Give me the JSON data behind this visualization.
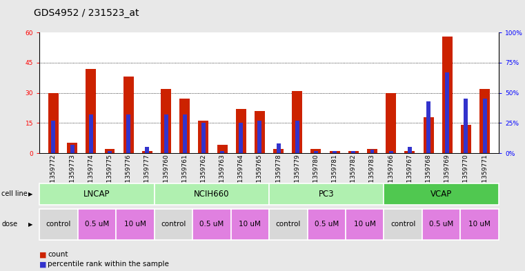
{
  "title": "GDS4952 / 231523_at",
  "samples": [
    "GSM1359772",
    "GSM1359773",
    "GSM1359774",
    "GSM1359775",
    "GSM1359776",
    "GSM1359777",
    "GSM1359760",
    "GSM1359761",
    "GSM1359762",
    "GSM1359763",
    "GSM1359764",
    "GSM1359765",
    "GSM1359778",
    "GSM1359779",
    "GSM1359780",
    "GSM1359781",
    "GSM1359782",
    "GSM1359783",
    "GSM1359766",
    "GSM1359767",
    "GSM1359768",
    "GSM1359769",
    "GSM1359770",
    "GSM1359771"
  ],
  "count_values": [
    30,
    5,
    42,
    2,
    38,
    1,
    32,
    27,
    16,
    4,
    22,
    21,
    2,
    31,
    2,
    1,
    1,
    2,
    30,
    1,
    18,
    58,
    14,
    32
  ],
  "percentile_values": [
    27,
    7,
    32,
    2,
    32,
    5,
    32,
    32,
    25,
    2,
    25,
    27,
    8,
    27,
    2,
    2,
    2,
    3,
    2,
    5,
    43,
    67,
    45,
    45
  ],
  "cell_lines": [
    {
      "name": "LNCAP",
      "start": 0,
      "end": 6,
      "color": "#b0f0b0"
    },
    {
      "name": "NCIH660",
      "start": 6,
      "end": 12,
      "color": "#b0f0b0"
    },
    {
      "name": "PC3",
      "start": 12,
      "end": 18,
      "color": "#b0f0b0"
    },
    {
      "name": "VCAP",
      "start": 18,
      "end": 24,
      "color": "#50c850"
    }
  ],
  "dose_groups": [
    {
      "name": "control",
      "start": 0,
      "end": 2,
      "color": "#d8d8d8"
    },
    {
      "name": "0.5 uM",
      "start": 2,
      "end": 4,
      "color": "#e080e0"
    },
    {
      "name": "10 uM",
      "start": 4,
      "end": 6,
      "color": "#e080e0"
    },
    {
      "name": "control",
      "start": 6,
      "end": 8,
      "color": "#d8d8d8"
    },
    {
      "name": "0.5 uM",
      "start": 8,
      "end": 10,
      "color": "#e080e0"
    },
    {
      "name": "10 uM",
      "start": 10,
      "end": 12,
      "color": "#e080e0"
    },
    {
      "name": "control",
      "start": 12,
      "end": 14,
      "color": "#d8d8d8"
    },
    {
      "name": "0.5 uM",
      "start": 14,
      "end": 16,
      "color": "#e080e0"
    },
    {
      "name": "10 uM",
      "start": 16,
      "end": 18,
      "color": "#e080e0"
    },
    {
      "name": "control",
      "start": 18,
      "end": 20,
      "color": "#d8d8d8"
    },
    {
      "name": "0.5 uM",
      "start": 20,
      "end": 22,
      "color": "#e080e0"
    },
    {
      "name": "10 uM",
      "start": 22,
      "end": 24,
      "color": "#e080e0"
    }
  ],
  "ylim_left": [
    0,
    60
  ],
  "ylim_right": [
    0,
    100
  ],
  "yticks_left": [
    0,
    15,
    30,
    45,
    60
  ],
  "yticks_right": [
    0,
    25,
    50,
    75,
    100
  ],
  "ytick_labels_right": [
    "0%",
    "25%",
    "50%",
    "75%",
    "100%"
  ],
  "bar_color_red": "#cc2200",
  "bar_color_blue": "#3333cc",
  "bg_color": "#e8e8e8",
  "plot_bg": "#ffffff",
  "title_fontsize": 10,
  "tick_fontsize": 6.5,
  "legend_fontsize": 7.5,
  "cell_line_fontsize": 8.5,
  "dose_fontsize": 7.5
}
